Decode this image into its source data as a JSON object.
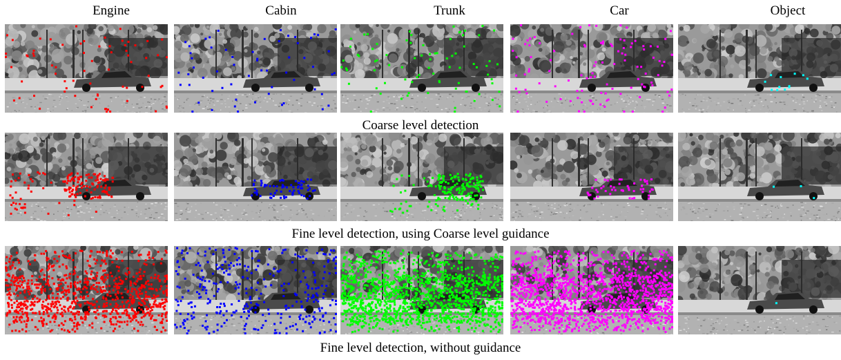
{
  "columns": [
    {
      "label": "Engine",
      "color": "#ff0000"
    },
    {
      "label": "Cabin",
      "color": "#0000ff"
    },
    {
      "label": "Trunk",
      "color": "#00ff00"
    },
    {
      "label": "Car",
      "color": "#ff00ff"
    },
    {
      "label": "Object",
      "color": "#00ffff"
    }
  ],
  "rows": [
    {
      "caption": "Coarse level detection",
      "panels": [
        {
          "points": 70,
          "spread": "sparse"
        },
        {
          "points": 60,
          "spread": "sparse"
        },
        {
          "points": 80,
          "spread": "sparse"
        },
        {
          "points": 110,
          "spread": "sparse"
        },
        {
          "points": 12,
          "spread": "car"
        }
      ]
    },
    {
      "caption": "Fine level detection, using Coarse level guidance",
      "panels": [
        {
          "points": 150,
          "spread": "car-left"
        },
        {
          "points": 70,
          "spread": "car"
        },
        {
          "points": 180,
          "spread": "car-right"
        },
        {
          "points": 50,
          "spread": "car"
        },
        {
          "points": 3,
          "spread": "car"
        }
      ]
    },
    {
      "caption": "Fine level detection, without guidance",
      "panels": [
        {
          "points": 900,
          "spread": "dense"
        },
        {
          "points": 350,
          "spread": "sparse"
        },
        {
          "points": 1400,
          "spread": "dense"
        },
        {
          "points": 1400,
          "spread": "dense"
        },
        {
          "points": 1,
          "spread": "car"
        }
      ]
    }
  ]
}
